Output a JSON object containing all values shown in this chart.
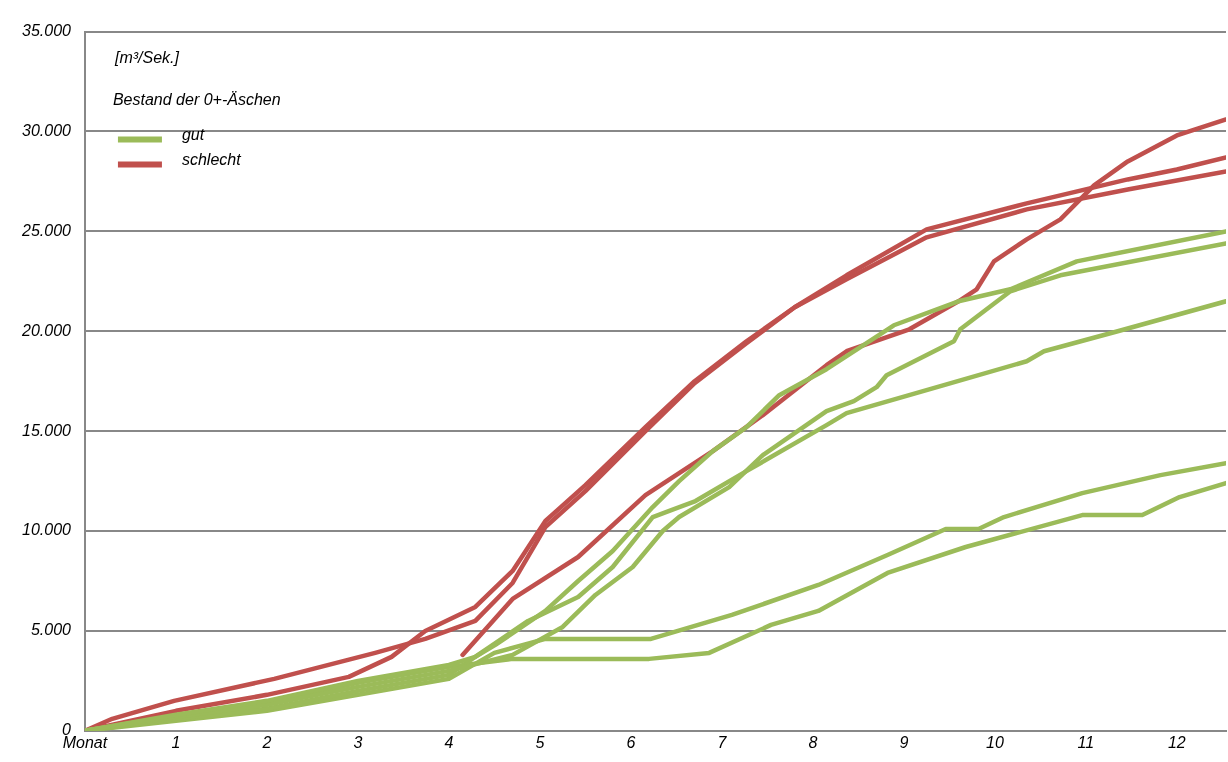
{
  "chart_data": {
    "type": "line",
    "annotations": [
      "[m³/Sek.]"
    ],
    "legend_title": "Bestand der 0+-Äschen",
    "legend": "top left",
    "grid": "y",
    "marker": "none",
    "line_style": "solid",
    "xlim": [
      0,
      12.54
    ],
    "xticks": [
      {
        "value": 0,
        "label": "Monat"
      },
      1,
      2,
      3,
      4,
      5,
      6,
      7,
      8,
      9,
      10,
      11,
      12
    ],
    "ylim": [
      0,
      35000
    ],
    "yticks": [
      {
        "value": 0,
        "label": "0"
      },
      {
        "value": 5000,
        "label": "5.000"
      },
      {
        "value": 10000,
        "label": "10.000"
      },
      {
        "value": 15000,
        "label": "15.000"
      },
      {
        "value": 20000,
        "label": "20.000"
      },
      {
        "value": 25000,
        "label": "25.000"
      },
      {
        "value": 30000,
        "label": "30.000"
      },
      {
        "value": 35000,
        "label": "35.000"
      }
    ],
    "series": [
      {
        "name": "gut",
        "color": "#9bbb59",
        "x": [
          0,
          1,
          2,
          3,
          4,
          4.29,
          4.51,
          5.06,
          5.42,
          5.8,
          6.24,
          6.53,
          6.9,
          7.27,
          7.63,
          8.15,
          8.89,
          9.6,
          10.17,
          10.9,
          12.54
        ],
        "values": [
          0,
          800,
          1500,
          2500,
          3300,
          3700,
          4300,
          6000,
          7500,
          9000,
          11200,
          12500,
          14000,
          15200,
          16800,
          18100,
          20300,
          21500,
          22100,
          23500,
          25000
        ]
      },
      {
        "color": "#9bbb59",
        "x": [
          0,
          1,
          2,
          3,
          4,
          4.7,
          5.25,
          5.61,
          6.02,
          6.35,
          6.53,
          7.08,
          7.45,
          8.15,
          8.45,
          8.7,
          8.81,
          9.55,
          9.62,
          10.17,
          10.72,
          12.54
        ],
        "values": [
          0,
          700,
          1300,
          2200,
          3000,
          3800,
          5200,
          6800,
          8200,
          10000,
          10700,
          12200,
          13800,
          16000,
          16500,
          17200,
          17800,
          19500,
          20100,
          22000,
          22800,
          24400
        ]
      },
      {
        "color": "#9bbb59",
        "x": [
          0,
          1,
          2,
          3,
          4,
          4.32,
          4.87,
          5.42,
          5.8,
          6.24,
          6.71,
          7.27,
          8.15,
          8.37,
          9.44,
          10.35,
          10.54,
          11.35,
          12.54
        ],
        "values": [
          0,
          600,
          1100,
          2000,
          2800,
          3800,
          5500,
          6700,
          8200,
          10700,
          11500,
          13000,
          15300,
          15900,
          17300,
          18500,
          19000,
          20000,
          21500
        ]
      },
      {
        "color": "#9bbb59",
        "x": [
          0,
          1,
          2,
          3,
          4,
          4.5,
          5.06,
          6.22,
          7.11,
          8.06,
          8.82,
          9.46,
          9.82,
          10.1,
          10.96,
          11.82,
          12.54
        ],
        "values": [
          0,
          500,
          1000,
          1800,
          2600,
          3900,
          4600,
          4600,
          5800,
          7300,
          8800,
          10100,
          10100,
          10700,
          11900,
          12800,
          13400
        ]
      },
      {
        "color": "#9bbb59",
        "x": [
          0,
          1,
          2,
          3,
          4,
          4.7,
          6.2,
          6.86,
          7.54,
          8.06,
          8.82,
          9.68,
          10.96,
          11.62,
          12.03,
          12.54
        ],
        "values": [
          0,
          750,
          1400,
          2400,
          3200,
          3600,
          3600,
          3900,
          5300,
          6000,
          7900,
          9200,
          10800,
          10800,
          11700,
          12400
        ]
      },
      {
        "name": "schlecht",
        "color": "#c0504d",
        "x": [
          0,
          1,
          2,
          2.9,
          3.37,
          3.74,
          4.29,
          4.7,
          5.06,
          5.5,
          6.16,
          6.7,
          7.27,
          7.8,
          8.37,
          9.25,
          10.35,
          11.46,
          12.0,
          12.54
        ],
        "values": [
          0,
          1000,
          1800,
          2700,
          3700,
          5000,
          6200,
          8000,
          10500,
          12300,
          15200,
          17500,
          19500,
          21200,
          22800,
          25100,
          26400,
          27600,
          28100,
          28700
        ]
      },
      {
        "color": "#c0504d",
        "x": [
          0,
          0.3,
          0.98,
          2.08,
          3.19,
          3.74,
          4.29,
          4.7,
          5.06,
          5.5,
          6.16,
          6.7,
          7.27,
          7.8,
          8.37,
          9.25,
          10.35,
          11.46,
          12.54
        ],
        "values": [
          0,
          600,
          1500,
          2600,
          3900,
          4600,
          5500,
          7400,
          10200,
          12000,
          15000,
          17400,
          19400,
          21200,
          22600,
          24700,
          26100,
          27100,
          28000
        ]
      },
      {
        "color": "#c0504d",
        "x": [
          4.15,
          4.7,
          5.42,
          6.16,
          6.9,
          7.45,
          8.15,
          8.37,
          9.06,
          9.6,
          9.8,
          9.99,
          10.35,
          10.72,
          11.09,
          11.46,
          12.0,
          12.54
        ],
        "values": [
          3800,
          6600,
          8700,
          11800,
          14000,
          15800,
          18300,
          19000,
          20100,
          21500,
          22100,
          23500,
          24600,
          25600,
          27300,
          28500,
          29800,
          30600
        ]
      }
    ]
  }
}
